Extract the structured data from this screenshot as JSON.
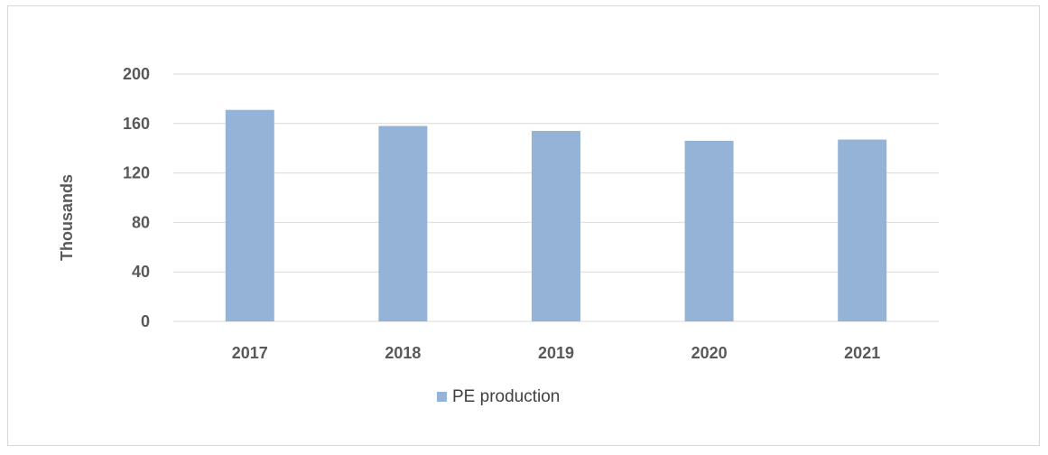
{
  "chart_data": {
    "type": "bar",
    "categories": [
      "2017",
      "2018",
      "2019",
      "2020",
      "2021"
    ],
    "series": [
      {
        "name": "PE production",
        "values": [
          171,
          158,
          154,
          146,
          147
        ],
        "color": "#95b3d7"
      }
    ],
    "ylabel": "Thousands",
    "ylim": [
      0,
      200
    ],
    "yticks": [
      0,
      40,
      80,
      120,
      160,
      200
    ],
    "ytick_labels": [
      "0",
      "40",
      "80",
      "120",
      "160",
      "200"
    ],
    "grid": true,
    "gridline_color": "#d9d9d9",
    "legend_position": "bottom"
  }
}
